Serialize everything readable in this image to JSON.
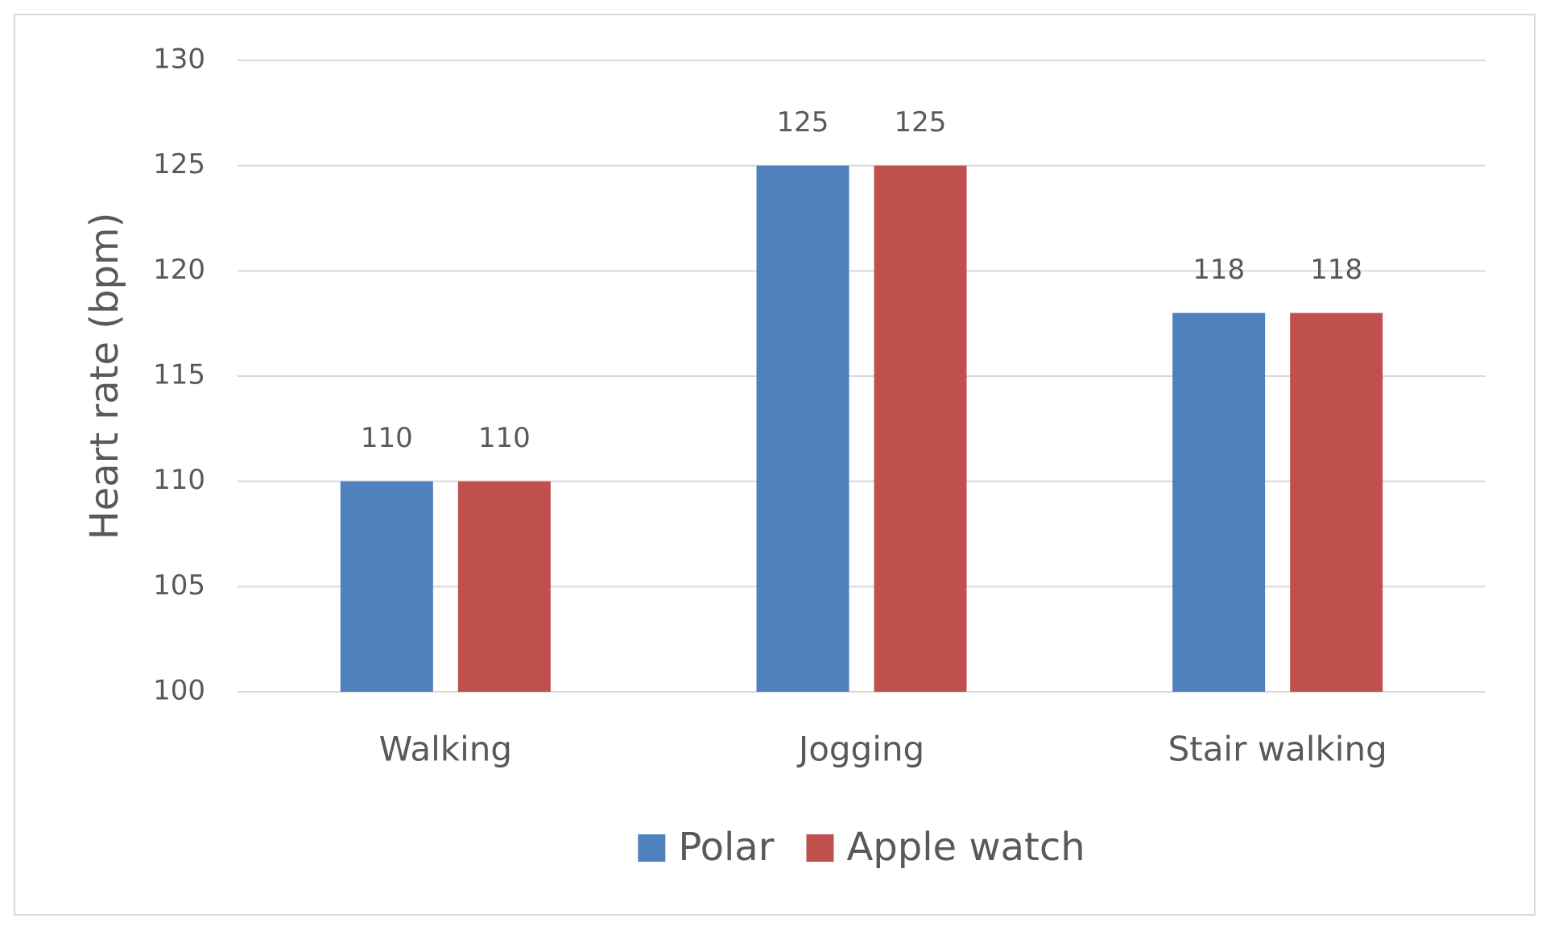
{
  "chart_data": {
    "type": "bar",
    "y_label": "Heart rate (bpm)",
    "categories": [
      "Walking",
      "Jogging",
      "Stair walking"
    ],
    "series": [
      {
        "name": "Polar",
        "color": "#4f81bd",
        "values": [
          110,
          125,
          118
        ]
      },
      {
        "name": "Apple watch",
        "color": "#c0504d",
        "values": [
          110,
          125,
          118
        ]
      }
    ],
    "ylim": [
      100,
      130
    ],
    "yticks": [
      100,
      105,
      110,
      115,
      120,
      125,
      130
    ],
    "grid": true,
    "legend": "bottom"
  }
}
